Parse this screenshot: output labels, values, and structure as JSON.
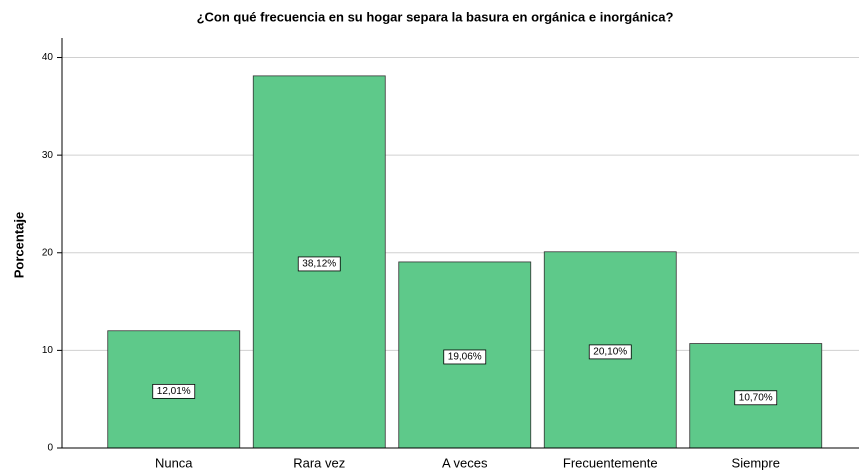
{
  "chart_data": {
    "type": "bar",
    "title": "¿Con qué frecuencia en su hogar separa la basura en orgánica e inorgánica?",
    "y_label": "Porcentaje",
    "categories": [
      "Nunca",
      "Rara vez",
      "A veces",
      "Frecuentemente",
      "Siempre"
    ],
    "values": [
      12.01,
      38.12,
      19.06,
      20.1,
      10.7
    ],
    "value_labels": [
      "12,01%",
      "38,12%",
      "19,06%",
      "20,10%",
      "10,70%"
    ],
    "color": "#5ec98a",
    "ylim": [
      0,
      42
    ],
    "yticks": [
      0,
      10,
      20,
      30,
      40
    ],
    "grid": true
  }
}
